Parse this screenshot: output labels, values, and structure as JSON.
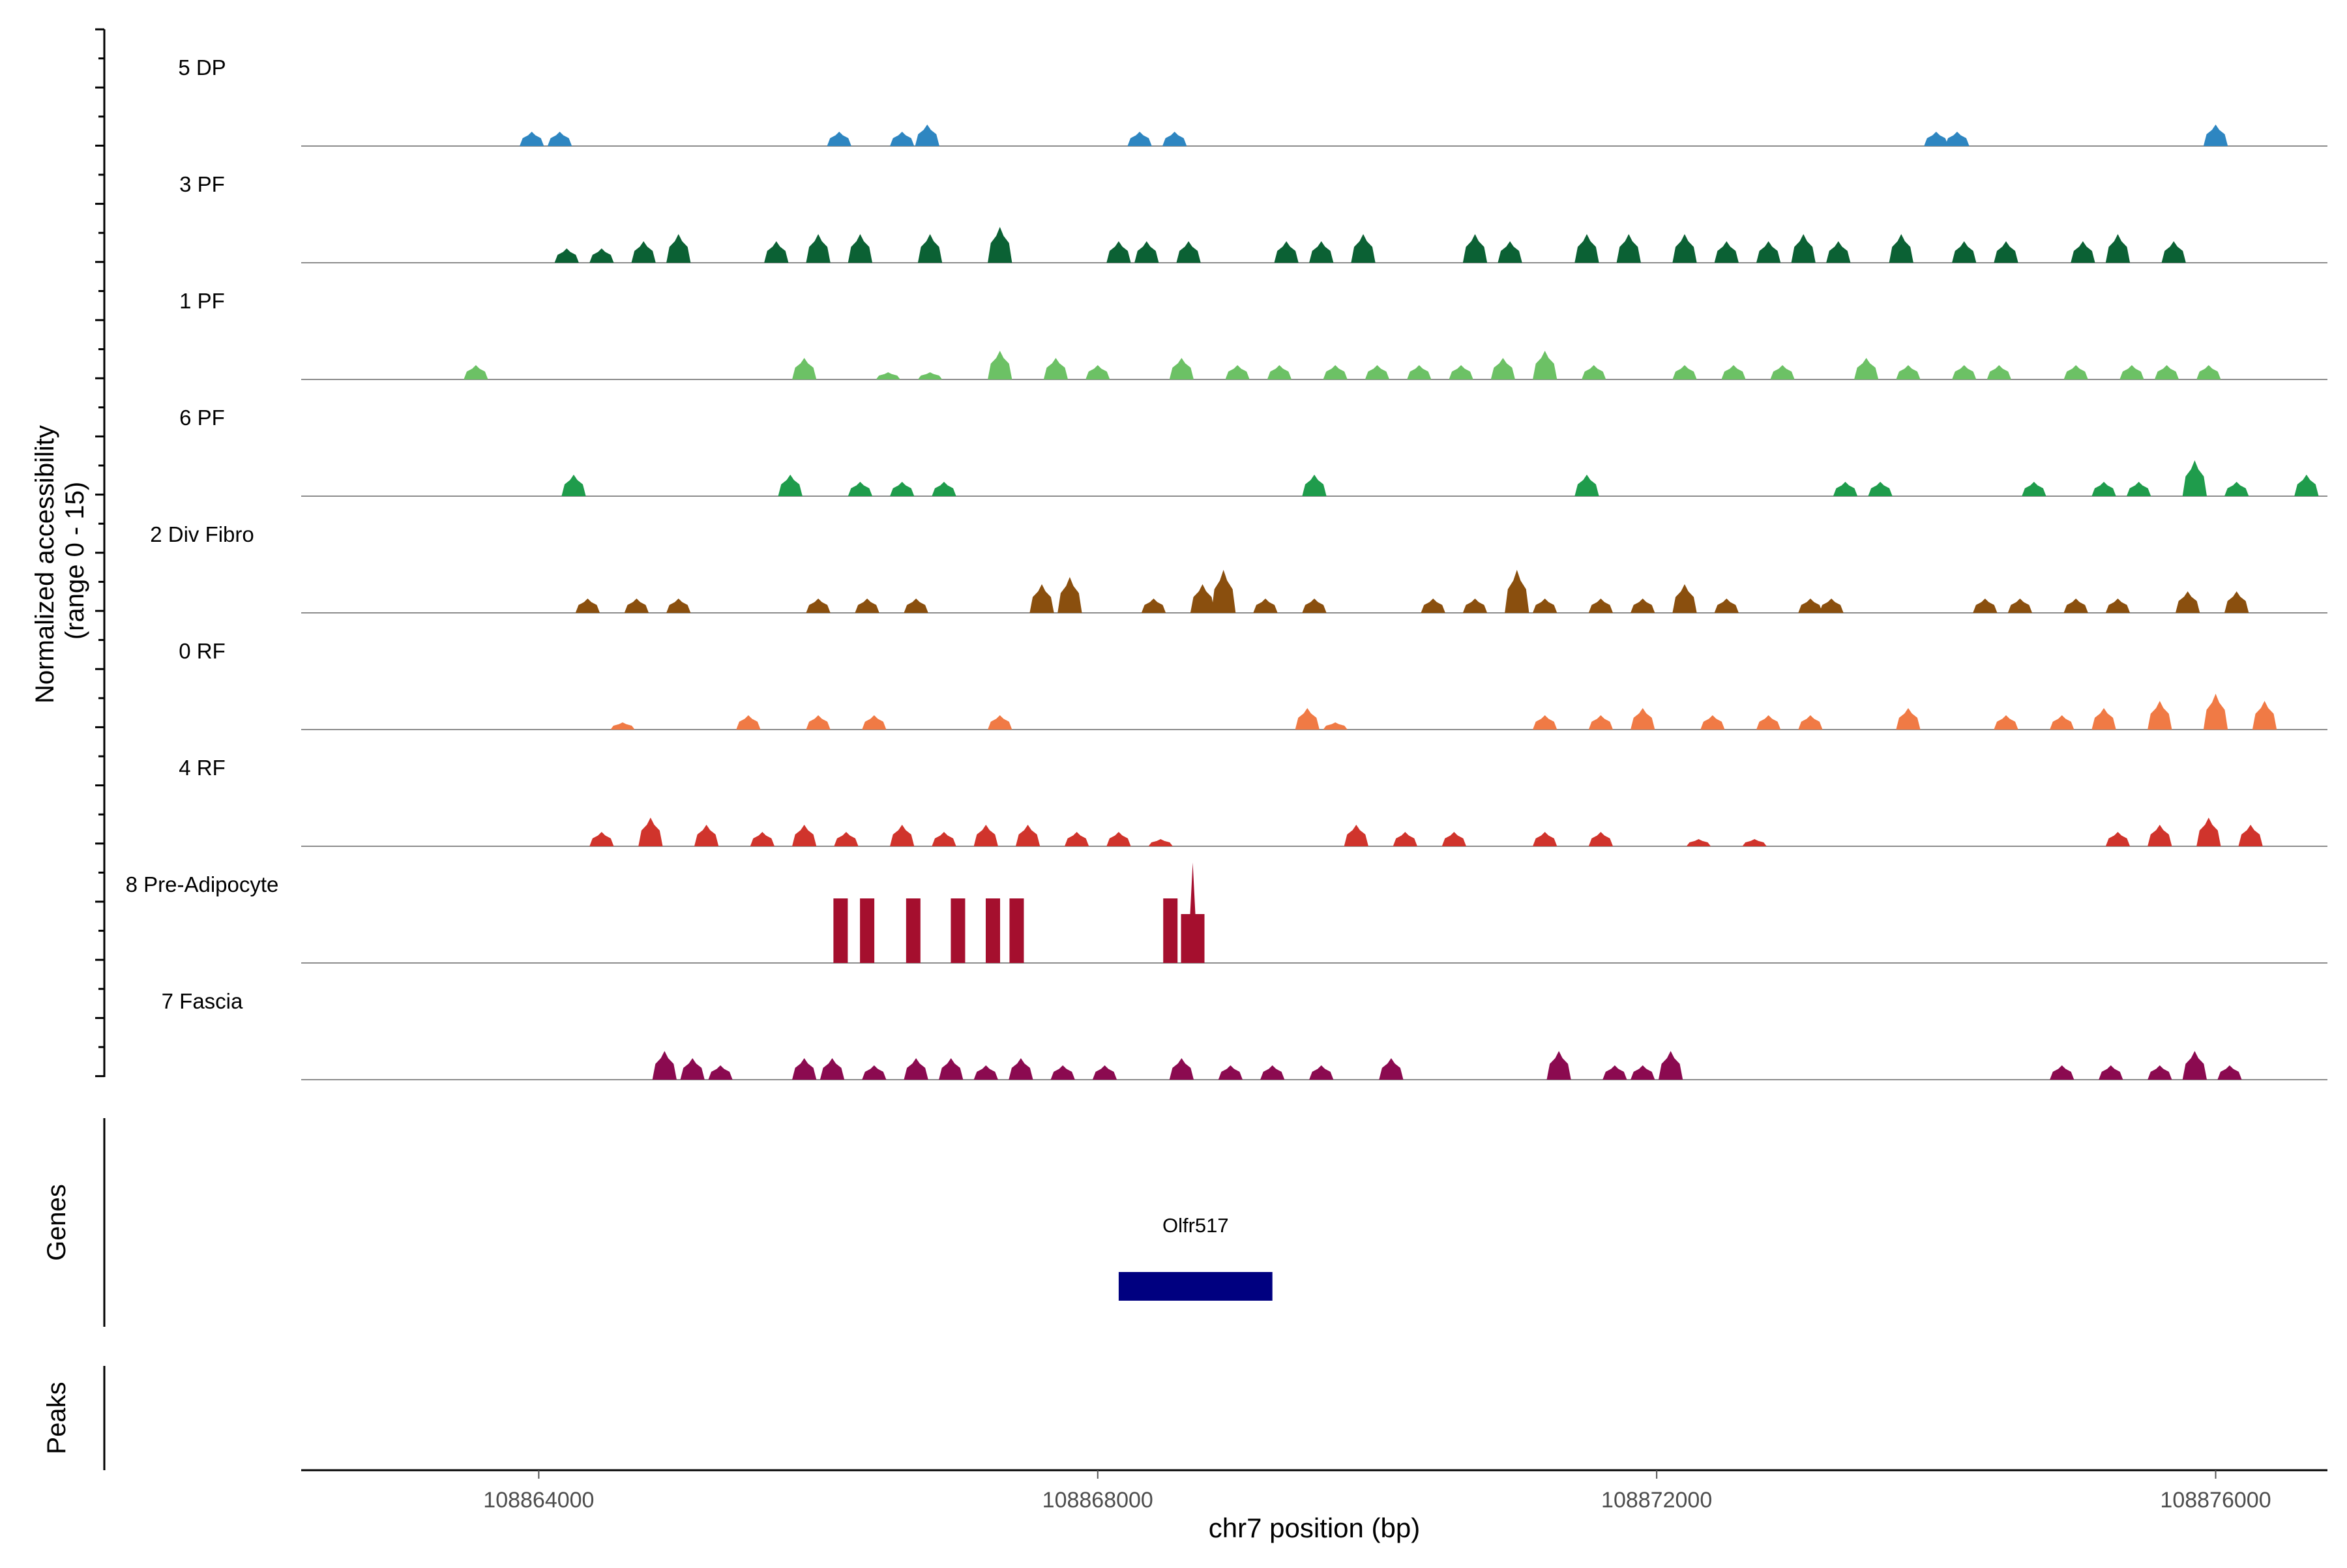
{
  "chart_data": {
    "type": "area",
    "title": "",
    "ylabel_line1": "Normalized accessibility",
    "ylabel_line2": "(range 0 - 15)",
    "xlabel": "chr7 position (bp)",
    "xlim": [
      108862300,
      108876800
    ],
    "ylim": [
      0,
      15
    ],
    "x_ticks": [
      {
        "value": 108864000,
        "label": "108864000"
      },
      {
        "value": 108868000,
        "label": "108868000"
      },
      {
        "value": 108872000,
        "label": "108872000"
      },
      {
        "value": 108876000,
        "label": "108876000"
      }
    ],
    "tracks": [
      {
        "name": "5 DP",
        "color": "#2E86C1",
        "peaks": [
          [
            108863950,
            2
          ],
          [
            108864150,
            2
          ],
          [
            108866150,
            2
          ],
          [
            108866600,
            2
          ],
          [
            108866780,
            3
          ],
          [
            108868300,
            2
          ],
          [
            108868550,
            2
          ],
          [
            108874000,
            2
          ],
          [
            108874150,
            2
          ],
          [
            108876000,
            3
          ]
        ]
      },
      {
        "name": "3 PF",
        "color": "#0B6134",
        "peaks": [
          [
            108864200,
            2
          ],
          [
            108864450,
            2
          ],
          [
            108864750,
            3
          ],
          [
            108865000,
            4
          ],
          [
            108865700,
            3
          ],
          [
            108866000,
            4
          ],
          [
            108866300,
            4
          ],
          [
            108866800,
            4
          ],
          [
            108867300,
            5
          ],
          [
            108868150,
            3
          ],
          [
            108868350,
            3
          ],
          [
            108868650,
            3
          ],
          [
            108869350,
            3
          ],
          [
            108869600,
            3
          ],
          [
            108869900,
            4
          ],
          [
            108870700,
            4
          ],
          [
            108870950,
            3
          ],
          [
            108871500,
            4
          ],
          [
            108871800,
            4
          ],
          [
            108872200,
            4
          ],
          [
            108872500,
            3
          ],
          [
            108872800,
            3
          ],
          [
            108873050,
            4
          ],
          [
            108873300,
            3
          ],
          [
            108873750,
            4
          ],
          [
            108874200,
            3
          ],
          [
            108874500,
            3
          ],
          [
            108875050,
            3
          ],
          [
            108875300,
            4
          ],
          [
            108875700,
            3
          ]
        ]
      },
      {
        "name": "1 PF",
        "color": "#6CC165",
        "peaks": [
          [
            108863550,
            2
          ],
          [
            108865900,
            3
          ],
          [
            108866500,
            1
          ],
          [
            108866800,
            1
          ],
          [
            108867300,
            4
          ],
          [
            108867700,
            3
          ],
          [
            108868000,
            2
          ],
          [
            108868600,
            3
          ],
          [
            108869000,
            2
          ],
          [
            108869300,
            2
          ],
          [
            108869700,
            2
          ],
          [
            108870000,
            2
          ],
          [
            108870300,
            2
          ],
          [
            108870600,
            2
          ],
          [
            108870900,
            3
          ],
          [
            108871200,
            4
          ],
          [
            108871550,
            2
          ],
          [
            108872200,
            2
          ],
          [
            108872550,
            2
          ],
          [
            108872900,
            2
          ],
          [
            108873500,
            3
          ],
          [
            108873800,
            2
          ],
          [
            108874200,
            2
          ],
          [
            108874450,
            2
          ],
          [
            108875000,
            2
          ],
          [
            108875400,
            2
          ],
          [
            108875650,
            2
          ],
          [
            108875950,
            2
          ]
        ]
      },
      {
        "name": "6 PF",
        "color": "#1F9C4C",
        "peaks": [
          [
            108864250,
            3
          ],
          [
            108865800,
            3
          ],
          [
            108866300,
            2
          ],
          [
            108866600,
            2
          ],
          [
            108866900,
            2
          ],
          [
            108869550,
            3
          ],
          [
            108871500,
            3
          ],
          [
            108873350,
            2
          ],
          [
            108873600,
            2
          ],
          [
            108874700,
            2
          ],
          [
            108875200,
            2
          ],
          [
            108875450,
            2
          ],
          [
            108875850,
            5
          ],
          [
            108876150,
            2
          ],
          [
            108876650,
            3
          ]
        ]
      },
      {
        "name": "2 Div Fibro",
        "color": "#8A4F0E",
        "peaks": [
          [
            108864350,
            2
          ],
          [
            108864700,
            2
          ],
          [
            108865000,
            2
          ],
          [
            108866000,
            2
          ],
          [
            108866350,
            2
          ],
          [
            108866700,
            2
          ],
          [
            108867600,
            4
          ],
          [
            108867800,
            5
          ],
          [
            108868400,
            2
          ],
          [
            108868750,
            4
          ],
          [
            108868900,
            6
          ],
          [
            108869200,
            2
          ],
          [
            108869550,
            2
          ],
          [
            108870400,
            2
          ],
          [
            108870700,
            2
          ],
          [
            108871000,
            6
          ],
          [
            108871200,
            2
          ],
          [
            108871600,
            2
          ],
          [
            108871900,
            2
          ],
          [
            108872200,
            4
          ],
          [
            108872500,
            2
          ],
          [
            108873100,
            2
          ],
          [
            108873250,
            2
          ],
          [
            108874350,
            2
          ],
          [
            108874600,
            2
          ],
          [
            108875000,
            2
          ],
          [
            108875300,
            2
          ],
          [
            108875800,
            3
          ],
          [
            108876150,
            3
          ]
        ]
      },
      {
        "name": "0 RF",
        "color": "#F07A45",
        "peaks": [
          [
            108864600,
            1
          ],
          [
            108865500,
            2
          ],
          [
            108866000,
            2
          ],
          [
            108866400,
            2
          ],
          [
            108867300,
            2
          ],
          [
            108869500,
            3
          ],
          [
            108869700,
            1
          ],
          [
            108871200,
            2
          ],
          [
            108871600,
            2
          ],
          [
            108871900,
            3
          ],
          [
            108872400,
            2
          ],
          [
            108872800,
            2
          ],
          [
            108873100,
            2
          ],
          [
            108873800,
            3
          ],
          [
            108874500,
            2
          ],
          [
            108874900,
            2
          ],
          [
            108875200,
            3
          ],
          [
            108875600,
            4
          ],
          [
            108876000,
            5
          ],
          [
            108876350,
            4
          ]
        ]
      },
      {
        "name": "4 RF",
        "color": "#D0342C",
        "peaks": [
          [
            108864450,
            2
          ],
          [
            108864800,
            4
          ],
          [
            108865200,
            3
          ],
          [
            108865600,
            2
          ],
          [
            108865900,
            3
          ],
          [
            108866200,
            2
          ],
          [
            108866600,
            3
          ],
          [
            108866900,
            2
          ],
          [
            108867200,
            3
          ],
          [
            108867500,
            3
          ],
          [
            108867850,
            2
          ],
          [
            108868150,
            2
          ],
          [
            108868450,
            1
          ],
          [
            108869850,
            3
          ],
          [
            108870200,
            2
          ],
          [
            108870550,
            2
          ],
          [
            108871200,
            2
          ],
          [
            108871600,
            2
          ],
          [
            108872300,
            1
          ],
          [
            108872700,
            1
          ],
          [
            108875300,
            2
          ],
          [
            108875600,
            3
          ],
          [
            108875950,
            4
          ],
          [
            108876250,
            3
          ]
        ]
      },
      {
        "name": "8 Pre-Adipocyte",
        "color": "#A50F2E",
        "peaks": [
          [
            108866160,
            9
          ],
          [
            108866350,
            9
          ],
          [
            108866680,
            9
          ],
          [
            108867000,
            9
          ],
          [
            108867250,
            9
          ],
          [
            108867420,
            9
          ],
          [
            108868520,
            9
          ],
          [
            108868680,
            14
          ]
        ]
      },
      {
        "name": "7 Fascia",
        "color": "#8B0A50",
        "peaks": [
          [
            108864900,
            4
          ],
          [
            108865100,
            3
          ],
          [
            108865300,
            2
          ],
          [
            108865900,
            3
          ],
          [
            108866100,
            3
          ],
          [
            108866400,
            2
          ],
          [
            108866700,
            3
          ],
          [
            108866950,
            3
          ],
          [
            108867200,
            2
          ],
          [
            108867450,
            3
          ],
          [
            108867750,
            2
          ],
          [
            108868050,
            2
          ],
          [
            108868600,
            3
          ],
          [
            108868950,
            2
          ],
          [
            108869250,
            2
          ],
          [
            108869600,
            2
          ],
          [
            108870100,
            3
          ],
          [
            108871300,
            4
          ],
          [
            108871700,
            2
          ],
          [
            108871900,
            2
          ],
          [
            108872100,
            4
          ],
          [
            108874900,
            2
          ],
          [
            108875250,
            2
          ],
          [
            108875600,
            2
          ],
          [
            108875850,
            4
          ],
          [
            108876100,
            2
          ]
        ]
      }
    ],
    "genes_label": "Genes",
    "genes": [
      {
        "name": "Olfr517",
        "start": 108868150,
        "end": 108869250,
        "color": "#000080"
      }
    ],
    "peaks_label": "Peaks"
  }
}
